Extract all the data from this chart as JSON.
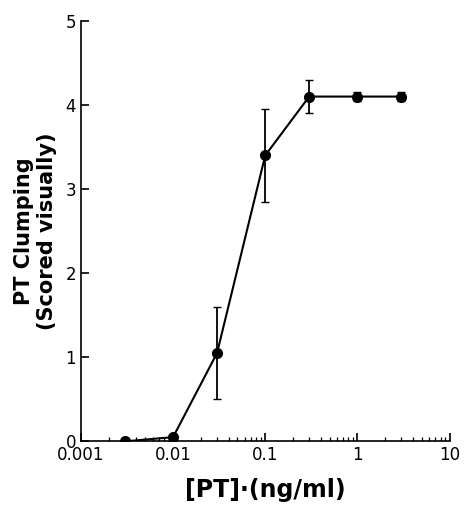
{
  "x": [
    0.003,
    0.01,
    0.03,
    0.1,
    0.3,
    1.0,
    3.0
  ],
  "y": [
    0.0,
    0.05,
    1.05,
    3.4,
    4.1,
    4.1,
    4.1
  ],
  "yerr": [
    0.0,
    0.0,
    0.55,
    0.55,
    0.2,
    0.05,
    0.05
  ],
  "xlabel": "[PT]·(ng/ml)",
  "ylabel": "PT Clumping\n(Scored visually)",
  "xlim": [
    0.001,
    10
  ],
  "ylim": [
    0,
    5
  ],
  "yticks": [
    0,
    1,
    2,
    3,
    4,
    5
  ],
  "xticks": [
    0.001,
    0.01,
    0.1,
    1,
    10
  ],
  "xtick_labels": [
    "0.001",
    "0.01",
    "0.1",
    "1",
    "10"
  ],
  "marker": "o",
  "markersize": 7,
  "linewidth": 1.5,
  "color": "#000000",
  "capsize": 3,
  "background_color": "#ffffff",
  "xlabel_fontsize": 17,
  "ylabel_fontsize": 15,
  "tick_fontsize": 12,
  "xlabel_fontweight": "bold",
  "ylabel_fontweight": "bold"
}
